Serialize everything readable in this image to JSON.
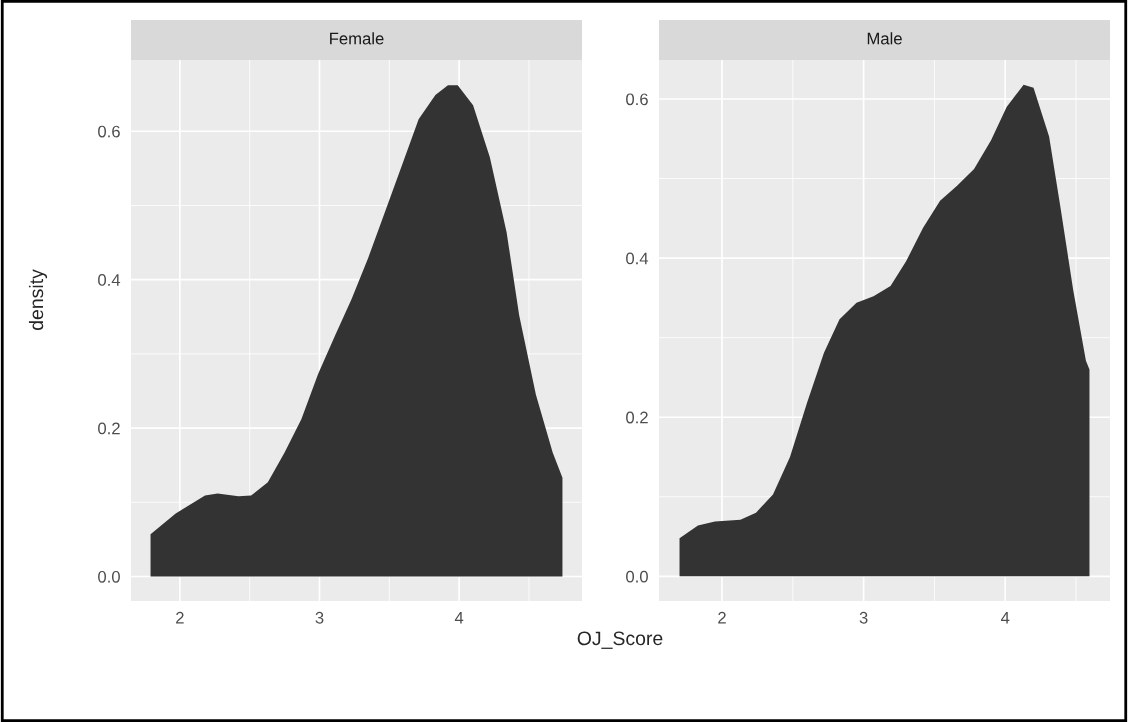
{
  "chart_data": [
    {
      "type": "area",
      "title": "Female",
      "ylabel": "density",
      "xlabel": "OJ_Score",
      "x": [
        1.79,
        1.97,
        2.18,
        2.27,
        2.42,
        2.51,
        2.63,
        2.75,
        2.87,
        2.99,
        3.11,
        3.23,
        3.35,
        3.47,
        3.59,
        3.71,
        3.83,
        3.92,
        3.99,
        4.1,
        4.22,
        4.34,
        4.43,
        4.55,
        4.67,
        4.74
      ],
      "series": [
        {
          "color": "#333333",
          "values": [
            0.057,
            0.085,
            0.109,
            0.112,
            0.108,
            0.109,
            0.127,
            0.167,
            0.212,
            0.273,
            0.324,
            0.374,
            0.43,
            0.492,
            0.554,
            0.616,
            0.649,
            0.662,
            0.662,
            0.635,
            0.565,
            0.464,
            0.352,
            0.245,
            0.167,
            0.133
          ]
        }
      ],
      "xlim": [
        1.65,
        4.88
      ],
      "ylim": [
        -0.033,
        0.696
      ],
      "xticks": [
        2,
        3,
        4
      ],
      "yticks": [
        {
          "value": 0,
          "label": "0.0"
        },
        0.2,
        0.4,
        0.6
      ],
      "grid": true
    },
    {
      "type": "area",
      "title": "Male",
      "x": [
        1.7,
        1.83,
        1.95,
        2.13,
        2.24,
        2.36,
        2.48,
        2.6,
        2.72,
        2.83,
        2.95,
        3.07,
        3.19,
        3.3,
        3.42,
        3.54,
        3.66,
        3.78,
        3.9,
        4.01,
        4.13,
        4.2,
        4.31,
        4.39,
        4.48,
        4.57,
        4.595
      ],
      "series": [
        {
          "color": "#333333",
          "values": [
            0.048,
            0.064,
            0.069,
            0.071,
            0.08,
            0.103,
            0.15,
            0.218,
            0.281,
            0.323,
            0.344,
            0.352,
            0.365,
            0.396,
            0.438,
            0.472,
            0.491,
            0.512,
            0.548,
            0.59,
            0.618,
            0.614,
            0.553,
            0.464,
            0.36,
            0.271,
            0.26
          ]
        }
      ],
      "xlim": [
        1.555,
        4.74
      ],
      "ylim": [
        -0.031,
        0.649
      ],
      "xticks": [
        2,
        3,
        4
      ],
      "yticks": [
        {
          "value": 0,
          "label": "0.0"
        },
        0.2,
        0.4,
        0.6
      ],
      "grid": true
    }
  ]
}
